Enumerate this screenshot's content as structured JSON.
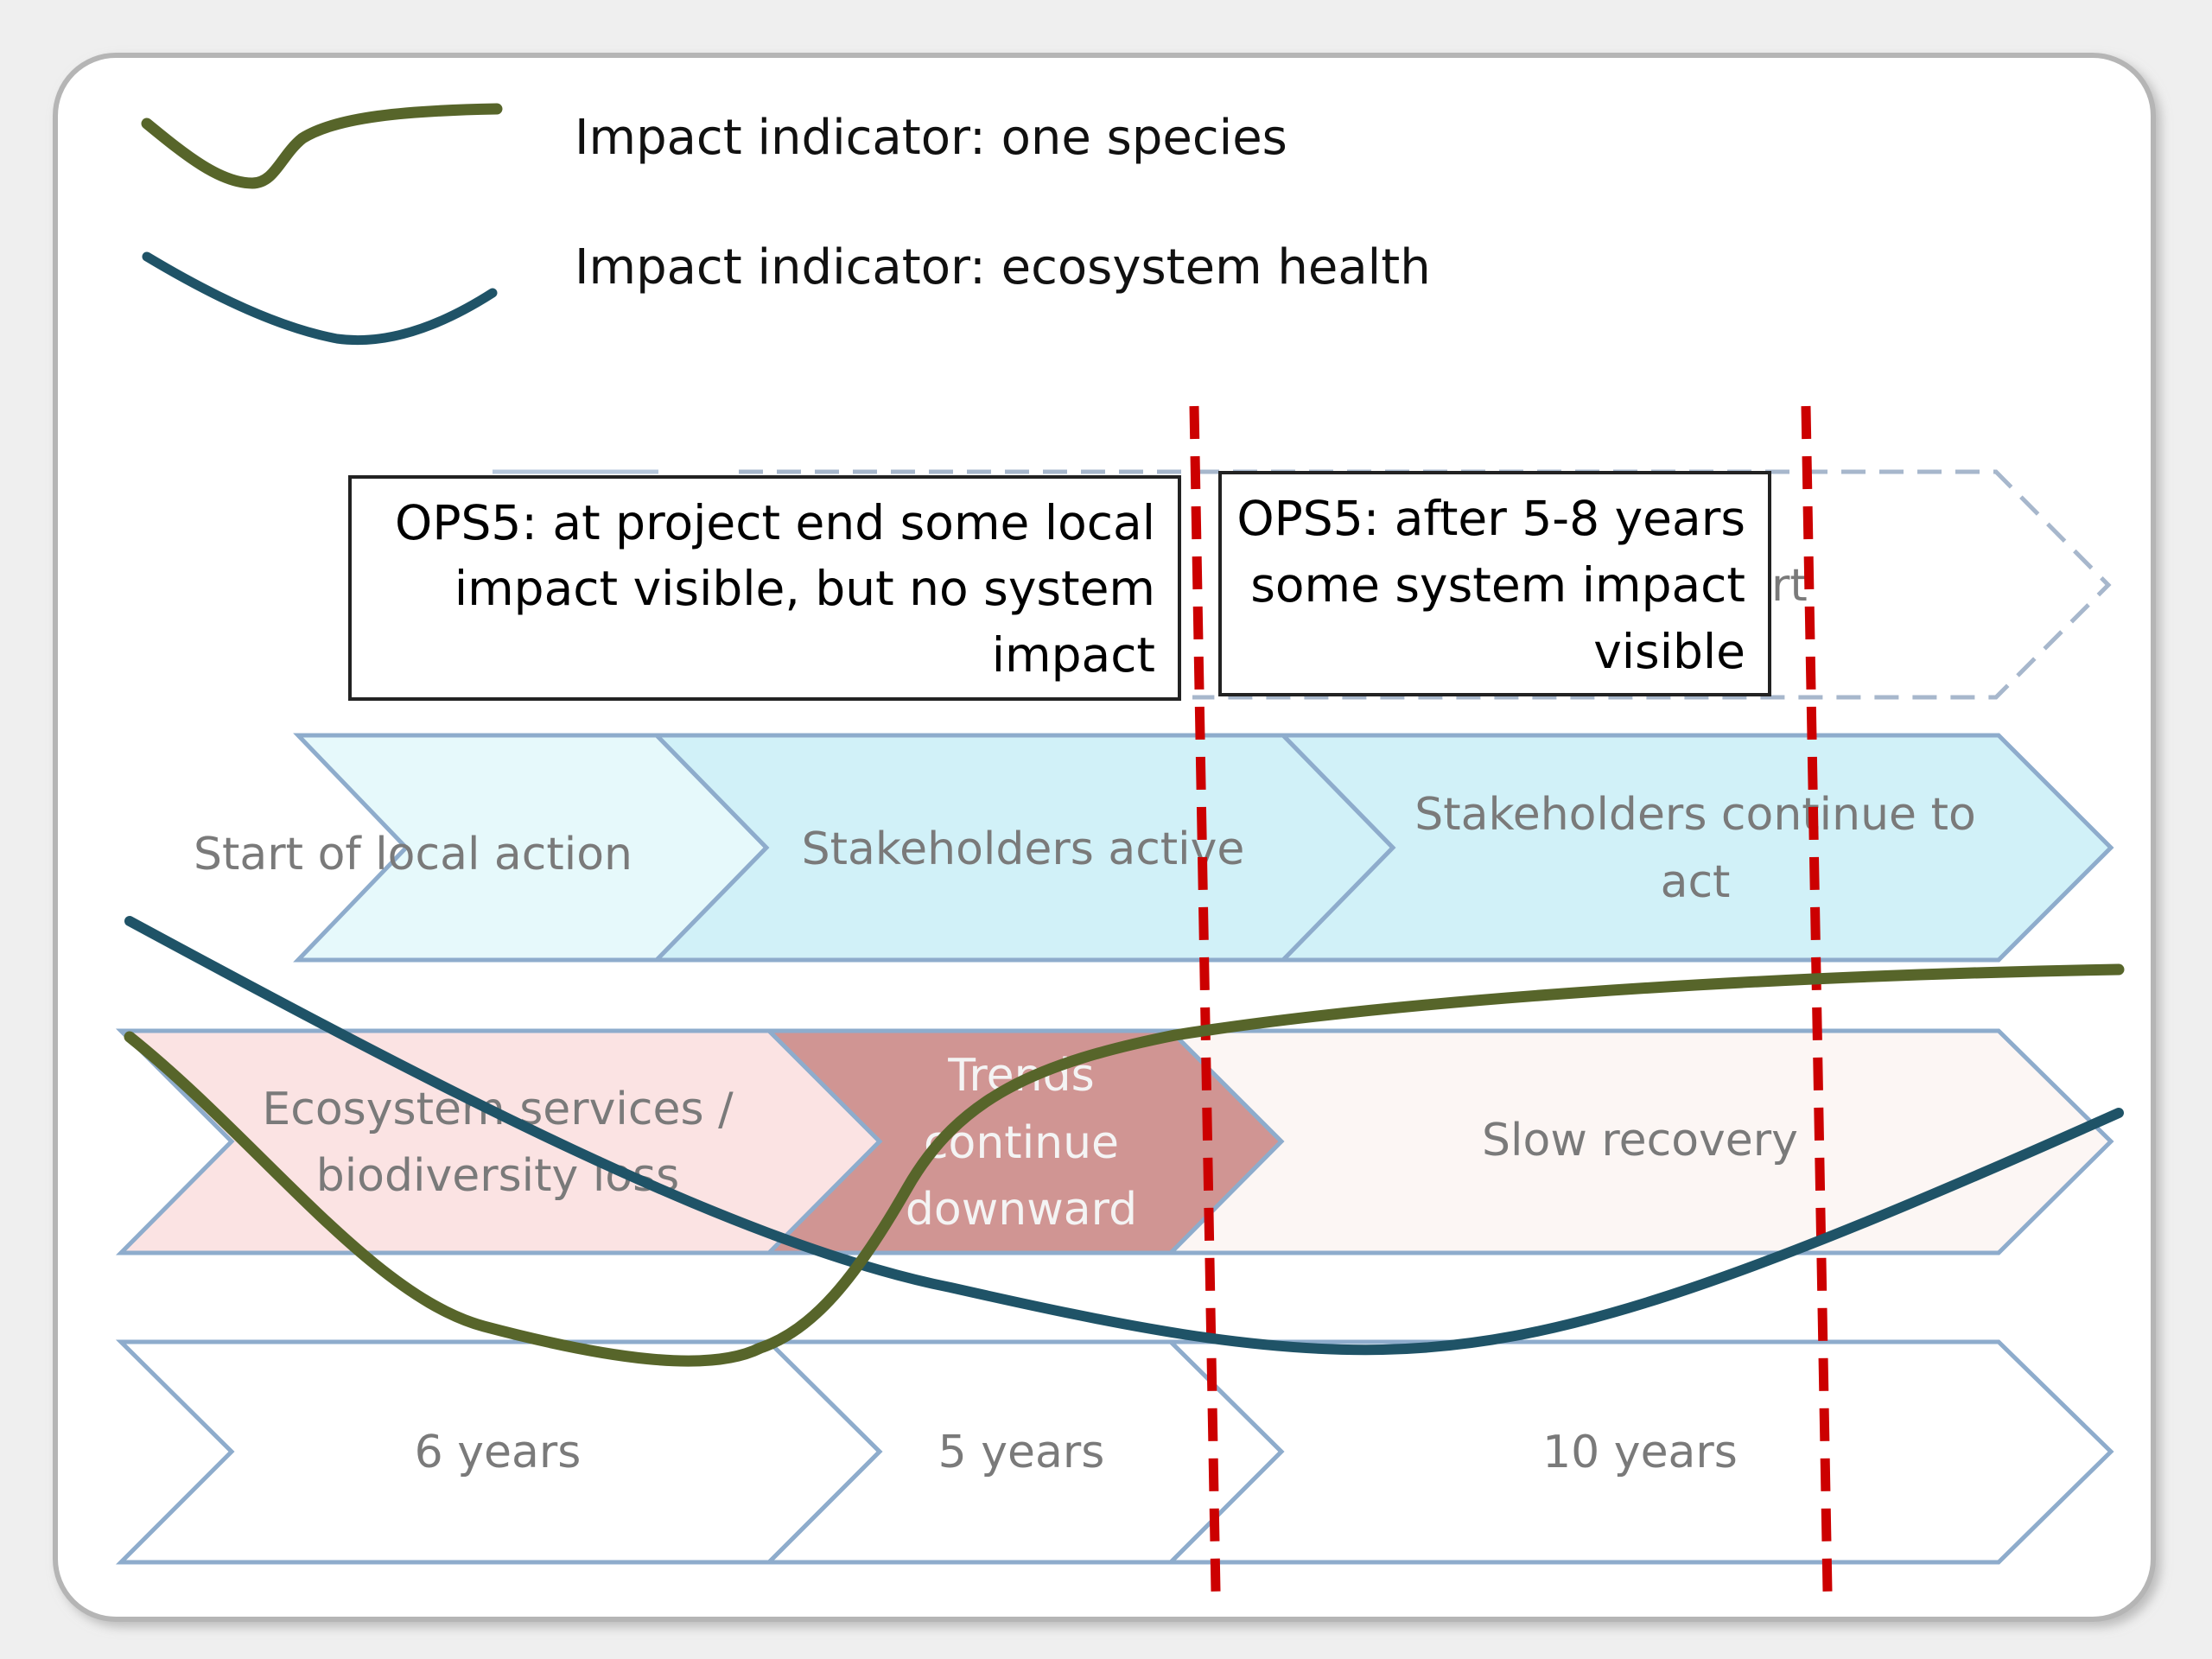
{
  "legend": {
    "species_label": "Impact indicator: one species",
    "ecosystem_label": "Impact indicator: ecosystem health"
  },
  "callouts": {
    "project_end": [
      "OPS5: at project end some local",
      "impact visible, but no system",
      "impact"
    ],
    "after_years": [
      "OPS5: after 5-8 years",
      "some system impact",
      "visible"
    ]
  },
  "hidden_chevron_fragment": "rt",
  "stakeholders_row": [
    [
      "Start of local action"
    ],
    [
      "Stakeholders active"
    ],
    [
      "Stakeholders continue to",
      "act"
    ]
  ],
  "ecosystem_row": [
    [
      "Ecosystem services /",
      "biodiversity loss"
    ],
    [
      "Trends",
      "continue",
      "downward"
    ],
    [
      "Slow recovery"
    ]
  ],
  "duration_row": [
    "6 years",
    "5 years",
    "10 years"
  ],
  "colors": {
    "species_line": "#57652a",
    "ecosystem_line": "#1f5367",
    "milestone_line": "#cc0000",
    "chevron_border": "#8eaccc",
    "stakeholder_light": "#e6f9fb",
    "stakeholder_mid": "#d1f1f8",
    "loss_fill": "#fbe3e3",
    "trend_fill": "#d09593",
    "recovery_fill": "#fcf6f4"
  }
}
